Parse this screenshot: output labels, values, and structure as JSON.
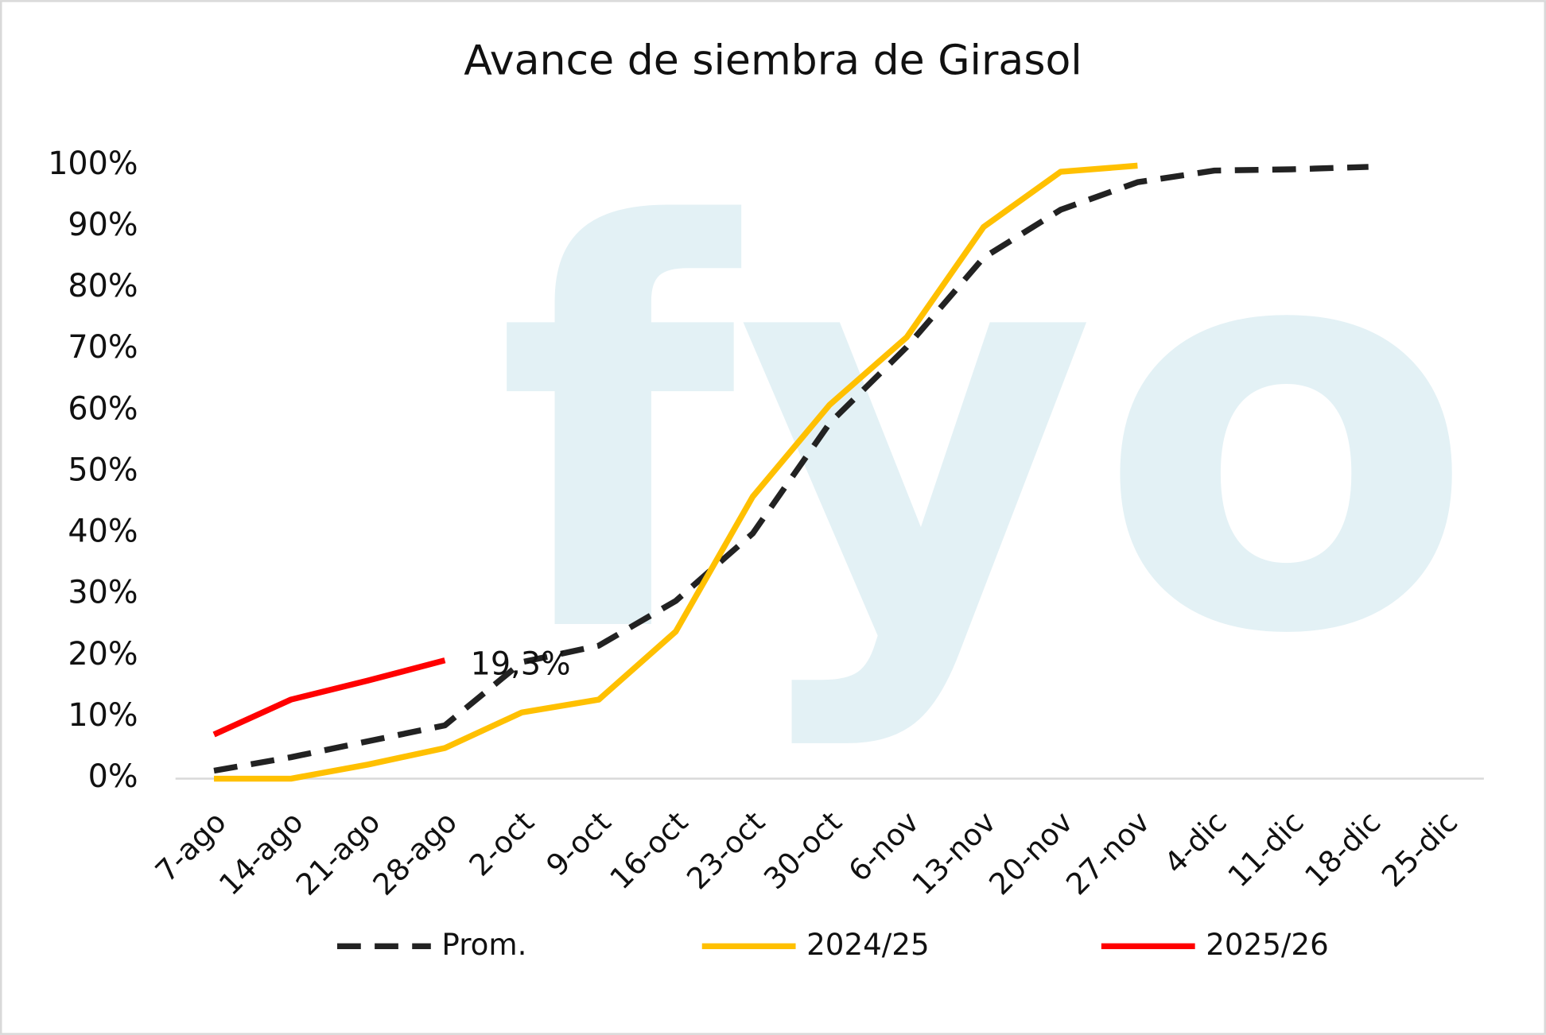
{
  "chart_data": {
    "type": "line",
    "title": "Avance de siembra de Girasol",
    "watermark": "fyo",
    "categories": [
      "7-ago",
      "14-ago",
      "21-ago",
      "28-ago",
      "2-oct",
      "9-oct",
      "16-oct",
      "23-oct",
      "30-oct",
      "6-nov",
      "13-nov",
      "20-nov",
      "27-nov",
      "4-dic",
      "11-dic",
      "18-dic",
      "25-dic"
    ],
    "series": [
      {
        "name": "Prom.",
        "color": "#222222",
        "line_style": "dashed",
        "values": [
          1.3,
          3.5,
          6.1,
          8.7,
          19,
          21.7,
          29,
          40,
          58,
          70.4,
          85,
          92.8,
          97.3,
          99.2,
          99.4,
          99.8,
          null
        ]
      },
      {
        "name": "2024/25",
        "color": "#FFC000",
        "line_style": "solid",
        "values": [
          0,
          0,
          2.3,
          5,
          10.8,
          12.9,
          24,
          46,
          61,
          72,
          90,
          99,
          100,
          null,
          null,
          null,
          null
        ]
      },
      {
        "name": "2025/26",
        "color": "#FF0000",
        "line_style": "solid",
        "values": [
          7.2,
          12.9,
          16,
          19.3,
          null,
          null,
          null,
          null,
          null,
          null,
          null,
          null,
          null,
          null,
          null,
          null,
          null
        ],
        "value_labels": [
          null,
          null,
          null,
          "19,3%",
          null,
          null,
          null,
          null,
          null,
          null,
          null,
          null,
          null,
          null,
          null,
          null,
          null
        ]
      }
    ],
    "ylim": [
      0,
      100
    ],
    "yticks": [
      {
        "value": 0,
        "label": "0%"
      },
      {
        "value": 10,
        "label": "10%"
      },
      {
        "value": 20,
        "label": "20%"
      },
      {
        "value": 30,
        "label": "30%"
      },
      {
        "value": 40,
        "label": "40%"
      },
      {
        "value": 50,
        "label": "50%"
      },
      {
        "value": 60,
        "label": "60%"
      },
      {
        "value": 70,
        "label": "70%"
      },
      {
        "value": 80,
        "label": "80%"
      },
      {
        "value": 90,
        "label": "90%"
      },
      {
        "value": 100,
        "label": "100%"
      }
    ],
    "grid": false,
    "legend": "bottom"
  }
}
